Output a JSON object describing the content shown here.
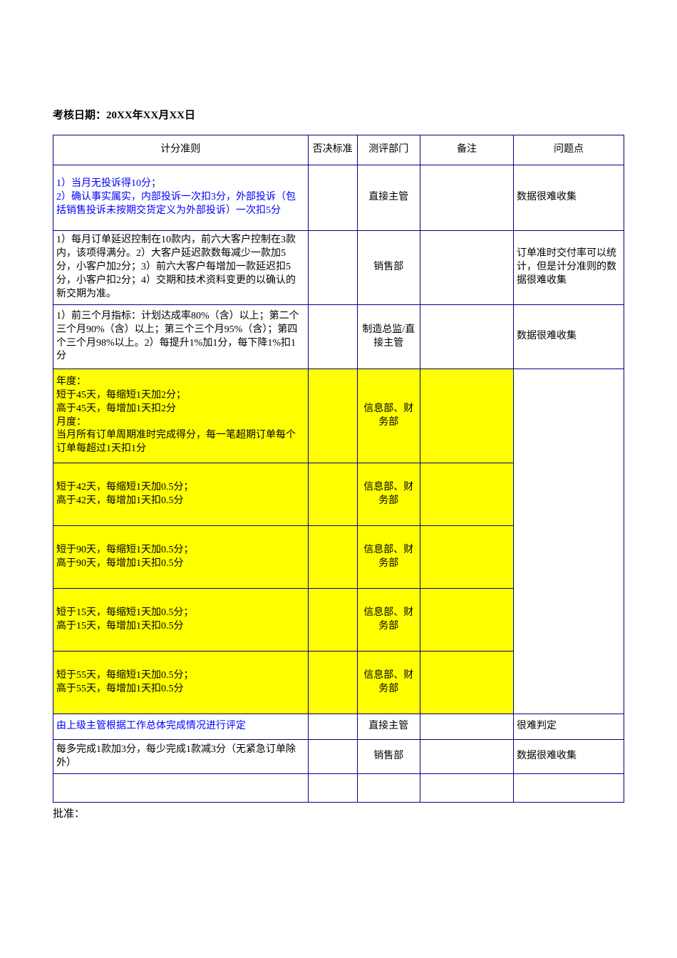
{
  "header": {
    "date_label": "考核日期：20XX年XX月XX日"
  },
  "columns": {
    "rule": "计分准则",
    "veto": "否决标准",
    "dept": "测评部门",
    "note": "备注",
    "issue": "问题点"
  },
  "rows": [
    {
      "rule": "1）当月无投诉得10分；\n2）确认事实属实，内部投诉一次扣3分，外部投诉（包括销售投诉未按期交货定义为外部投诉）一次扣5分",
      "dept": "直接主管",
      "issue": "数据很难收集",
      "highlight": false,
      "blue": true
    },
    {
      "rule": "1）每月订单延迟控制在10款内，前六大客户控制在3款内，该项得满分。2）大客户延迟款数每减少一款加5分，小客户加2分；3）前六大客户每增加一款延迟扣5分，小客户扣2分；4）交期和技术资料变更的以确认的新交期为准。",
      "dept": "销售部",
      "issue": "订单准时交付率可以统计，但是计分准则的数据很难收集",
      "highlight": false,
      "blue": false
    },
    {
      "rule": "1）前三个月指标：计划达成率80%（含）以上；第二个三个月90%（含）以上；第三个三个月95%（含）；第四个三个月98%以上。2）每提升1%加1分，每下降1%扣1分",
      "dept": "制造总监/直接主管",
      "issue": "数据很难收集",
      "highlight": false,
      "blue": false
    },
    {
      "rule": "年度：\n短于45天，每缩短1天加2分；\n高于45天，每增加1天扣2分\n月度：\n当月所有订单周期准时完成得分，每一笔超期订单每个订单每超过1天扣1分",
      "dept": "信息部、财务部",
      "issue": "",
      "highlight": true,
      "blue": false
    },
    {
      "rule": "短于42天，每缩短1天加0.5分；\n高于42天，每增加1天扣0.5分",
      "dept": "信息部、财务部",
      "issue": "",
      "highlight": true,
      "blue": false
    },
    {
      "rule": "短于90天，每缩短1天加0.5分；\n高于90天，每增加1天扣0.5分",
      "dept": "信息部、财务部",
      "issue": "",
      "highlight": true,
      "blue": false
    },
    {
      "rule": "短于15天，每缩短1天加0.5分；\n高于15天，每增加1天扣0.5分",
      "dept": "信息部、财务部",
      "issue": "",
      "highlight": true,
      "blue": false
    },
    {
      "rule": "短于55天，每缩短1天加0.5分；\n高于55天，每增加1天扣0.5分",
      "dept": "信息部、财务部",
      "issue": "",
      "highlight": true,
      "blue": false
    },
    {
      "rule": "由上级主管根据工作总体完成情况进行评定",
      "dept": "直接主管",
      "issue": "很难判定",
      "highlight": false,
      "blue": true
    },
    {
      "rule": "每多完成1款加3分，每少完成1款减3分（无紧急订单除外）",
      "dept": "销售部",
      "issue": "数据很难收集",
      "highlight": false,
      "blue": false
    }
  ],
  "footer": {
    "approve": "批准："
  },
  "style": {
    "border_color": "#000080",
    "highlight_color": "#ffff00",
    "blue_text_color": "#0000ff",
    "background": "#ffffff",
    "font_family": "SimSun",
    "base_font_size_pt": 11
  }
}
